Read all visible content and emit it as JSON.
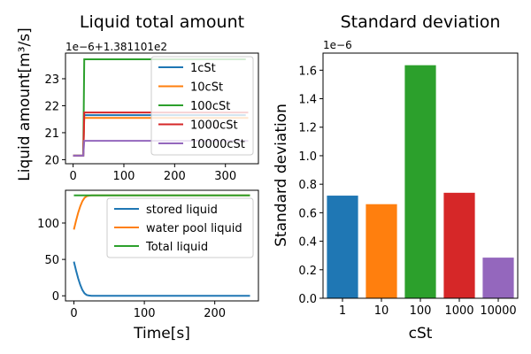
{
  "colors": {
    "blue": "#1f77b4",
    "orange": "#ff7f0e",
    "green": "#2ca02c",
    "red": "#d62728",
    "purple": "#9467bd"
  },
  "chart_data": [
    {
      "type": "line",
      "title": "Liquid total amount",
      "ylabel": "Liquid amount[m³/s]",
      "y_offset_text": "1e−6+1.381101e2",
      "xlim": [
        -15,
        365
      ],
      "ylim": [
        19.85,
        23.95
      ],
      "xticks": [
        0,
        100,
        200,
        300
      ],
      "yticks": [
        20,
        21,
        22,
        23
      ],
      "legend_position": "upper-right",
      "series": [
        {
          "name": "1cSt",
          "color": "#1f77b4",
          "points": [
            [
              0,
              20.15
            ],
            [
              20,
              20.15
            ],
            [
              22,
              21.65
            ],
            [
              340,
              21.65
            ]
          ]
        },
        {
          "name": "10cSt",
          "color": "#ff7f0e",
          "points": [
            [
              0,
              20.15
            ],
            [
              20,
              20.15
            ],
            [
              22,
              21.55
            ],
            [
              345,
              21.55
            ]
          ]
        },
        {
          "name": "100cSt",
          "color": "#2ca02c",
          "points": [
            [
              0,
              20.15
            ],
            [
              20,
              20.15
            ],
            [
              22,
              23.72
            ],
            [
              340,
              23.72
            ]
          ]
        },
        {
          "name": "1000cSt",
          "color": "#d62728",
          "points": [
            [
              0,
              20.15
            ],
            [
              20,
              20.15
            ],
            [
              22,
              21.75
            ],
            [
              345,
              21.75
            ]
          ]
        },
        {
          "name": "10000cSt",
          "color": "#9467bd",
          "points": [
            [
              0,
              20.15
            ],
            [
              20,
              20.15
            ],
            [
              22,
              20.7
            ],
            [
              345,
              20.7
            ]
          ]
        }
      ]
    },
    {
      "type": "line",
      "xlabel": "Time[s]",
      "xlim": [
        -12,
        262
      ],
      "ylim": [
        -7,
        145
      ],
      "xticks": [
        0,
        100,
        200
      ],
      "yticks": [
        0,
        50,
        100
      ],
      "legend_position": "upper-right",
      "series": [
        {
          "name": "stored liquid",
          "color": "#1f77b4",
          "points": [
            [
              0,
              47
            ],
            [
              3,
              35
            ],
            [
              6,
              24
            ],
            [
              9,
              15
            ],
            [
              12,
              8
            ],
            [
              15,
              3.5
            ],
            [
              18,
              1.2
            ],
            [
              21,
              0.4
            ],
            [
              25,
              0
            ],
            [
              250,
              0
            ]
          ]
        },
        {
          "name": "water pool liquid",
          "color": "#ff7f0e",
          "points": [
            [
              0,
              91
            ],
            [
              3,
              103
            ],
            [
              6,
              114
            ],
            [
              9,
              123
            ],
            [
              12,
              130
            ],
            [
              15,
              134.5
            ],
            [
              18,
              136.8
            ],
            [
              21,
              137.6
            ],
            [
              25,
              138
            ],
            [
              250,
              138
            ]
          ]
        },
        {
          "name": "Total liquid",
          "color": "#2ca02c",
          "points": [
            [
              0,
              138
            ],
            [
              250,
              138
            ]
          ]
        }
      ]
    },
    {
      "type": "bar",
      "title": "Standard deviation",
      "xlabel": "cSt",
      "ylabel": "Standard deviation",
      "y_offset_text": "1e−6",
      "categories": [
        "1",
        "10",
        "100",
        "1000",
        "10000"
      ],
      "values": [
        0.72,
        0.66,
        1.635,
        0.74,
        0.285
      ],
      "bar_colors": [
        "#1f77b4",
        "#ff7f0e",
        "#2ca02c",
        "#d62728",
        "#9467bd"
      ],
      "ylim": [
        0,
        1.72
      ],
      "yticks": [
        "0.0",
        "0.2",
        "0.4",
        "0.6",
        "0.8",
        "1.0",
        "1.2",
        "1.4",
        "1.6"
      ]
    }
  ]
}
